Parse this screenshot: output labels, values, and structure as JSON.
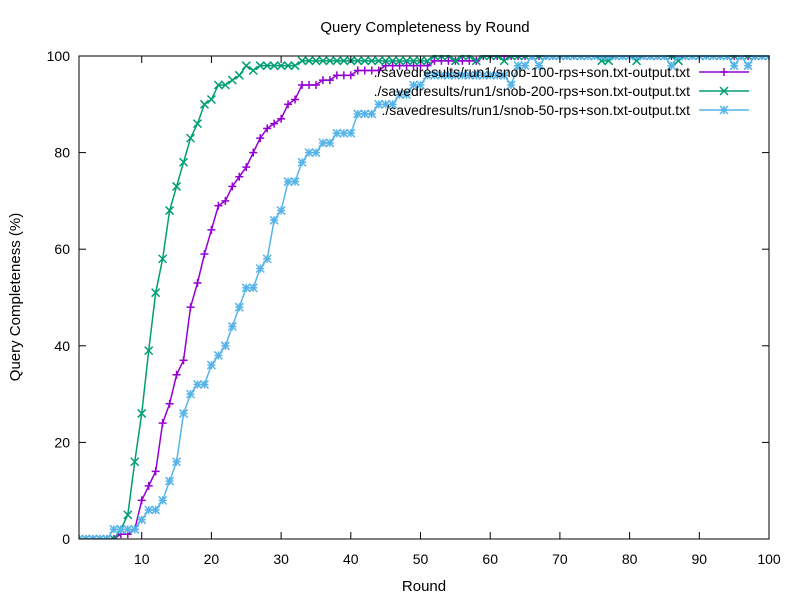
{
  "chart_data": {
    "type": "line",
    "title": "Query Completeness by Round",
    "xlabel": "Round",
    "ylabel": "Query Completeness (%)",
    "xlim": [
      1,
      100
    ],
    "ylim": [
      0,
      100
    ],
    "xticks": [
      10,
      20,
      30,
      40,
      50,
      60,
      70,
      80,
      90,
      100
    ],
    "yticks": [
      0,
      20,
      40,
      60,
      80,
      100
    ],
    "grid": false,
    "legend_position": "top-right",
    "series": [
      {
        "name": "./savedresults/run1/snob-100-rps+son.txt-output.txt",
        "color": "#9400d3",
        "marker": "plus",
        "x": [
          1,
          2,
          3,
          4,
          5,
          6,
          7,
          8,
          9,
          10,
          11,
          12,
          13,
          14,
          15,
          16,
          17,
          18,
          19,
          20,
          21,
          22,
          23,
          24,
          25,
          26,
          27,
          28,
          29,
          30,
          31,
          32,
          33,
          34,
          35,
          36,
          37,
          38,
          39,
          40,
          41,
          42,
          43,
          44,
          45,
          46,
          47,
          48,
          49,
          50,
          51,
          52,
          53,
          54,
          55,
          56,
          57,
          58,
          59,
          60,
          61,
          62,
          63,
          64,
          65,
          66,
          67,
          68,
          69,
          70,
          71,
          72,
          73,
          74,
          75,
          76,
          77,
          78,
          79,
          80,
          81,
          82,
          83,
          84,
          85,
          86,
          87,
          88,
          89,
          90,
          91,
          92,
          93,
          94,
          95,
          96,
          97,
          98,
          99,
          100
        ],
        "y": [
          0,
          0,
          0,
          0,
          0,
          0,
          1,
          1,
          2,
          8,
          11,
          14,
          24,
          28,
          34,
          37,
          48,
          53,
          59,
          64,
          69,
          70,
          73,
          75,
          77,
          80,
          83,
          85,
          86,
          87,
          90,
          91,
          94,
          94,
          94,
          95,
          95,
          96,
          96,
          96,
          97,
          97,
          97,
          97,
          98,
          98,
          98,
          98,
          98,
          98,
          98,
          99,
          99,
          99,
          99,
          99,
          99,
          99,
          100,
          100,
          100,
          100,
          100,
          100,
          100,
          100,
          100,
          100,
          100,
          100,
          100,
          100,
          100,
          100,
          100,
          100,
          100,
          100,
          100,
          100,
          100,
          100,
          100,
          100,
          100,
          100,
          100,
          100,
          100,
          100,
          100,
          100,
          100,
          100,
          100,
          100,
          100,
          100,
          100,
          100
        ]
      },
      {
        "name": "./savedresults/run1/snob-200-rps+son.txt-output.txt",
        "color": "#009e73",
        "marker": "cross",
        "x": [
          1,
          2,
          3,
          4,
          5,
          6,
          7,
          8,
          9,
          10,
          11,
          12,
          13,
          14,
          15,
          16,
          17,
          18,
          19,
          20,
          21,
          22,
          23,
          24,
          25,
          26,
          27,
          28,
          29,
          30,
          31,
          32,
          33,
          34,
          35,
          36,
          37,
          38,
          39,
          40,
          41,
          42,
          43,
          44,
          45,
          46,
          47,
          48,
          49,
          50,
          51,
          52,
          53,
          54,
          55,
          56,
          57,
          58,
          59,
          60,
          61,
          62,
          63,
          64,
          65,
          66,
          67,
          68,
          69,
          70,
          71,
          72,
          73,
          74,
          75,
          76,
          77,
          78,
          79,
          80,
          81,
          82,
          83,
          84,
          85,
          86,
          87,
          88,
          89,
          90,
          91,
          92,
          93,
          94,
          95,
          96,
          97,
          98,
          99,
          100
        ],
        "y": [
          0,
          0,
          0,
          0,
          0,
          0,
          2,
          5,
          16,
          26,
          39,
          51,
          58,
          68,
          73,
          78,
          83,
          86,
          90,
          91,
          94,
          94,
          95,
          96,
          98,
          97,
          98,
          98,
          98,
          98,
          98,
          98,
          99,
          99,
          99,
          99,
          99,
          99,
          99,
          99,
          99,
          99,
          99,
          99,
          99,
          99,
          99,
          99,
          99,
          99,
          99,
          100,
          100,
          100,
          99,
          100,
          100,
          99,
          100,
          100,
          100,
          99,
          100,
          100,
          100,
          100,
          100,
          100,
          100,
          100,
          100,
          100,
          100,
          100,
          100,
          99,
          99,
          100,
          100,
          100,
          99,
          100,
          100,
          100,
          100,
          100,
          99,
          100,
          100,
          100,
          100,
          100,
          100,
          100,
          100,
          100,
          100,
          100,
          100,
          100
        ]
      },
      {
        "name": "./savedresults/run1/snob-50-rps+son.txt-output.txt",
        "color": "#56b4e9",
        "marker": "star",
        "x": [
          1,
          2,
          3,
          4,
          5,
          6,
          7,
          8,
          9,
          10,
          11,
          12,
          13,
          14,
          15,
          16,
          17,
          18,
          19,
          20,
          21,
          22,
          23,
          24,
          25,
          26,
          27,
          28,
          29,
          30,
          31,
          32,
          33,
          34,
          35,
          36,
          37,
          38,
          39,
          40,
          41,
          42,
          43,
          44,
          45,
          46,
          47,
          48,
          49,
          50,
          51,
          52,
          53,
          54,
          55,
          56,
          57,
          58,
          59,
          60,
          61,
          62,
          63,
          64,
          65,
          66,
          67,
          68,
          69,
          70,
          71,
          72,
          73,
          74,
          75,
          76,
          77,
          78,
          79,
          80,
          81,
          82,
          83,
          84,
          85,
          86,
          87,
          88,
          89,
          90,
          91,
          92,
          93,
          94,
          95,
          96,
          97,
          98,
          99,
          100
        ],
        "y": [
          0,
          0,
          0,
          0,
          0,
          2,
          2,
          2,
          2,
          4,
          6,
          6,
          8,
          12,
          16,
          26,
          30,
          32,
          32,
          36,
          38,
          40,
          44,
          48,
          52,
          52,
          56,
          58,
          66,
          68,
          74,
          74,
          78,
          80,
          80,
          82,
          82,
          84,
          84,
          84,
          88,
          88,
          88,
          90,
          90,
          90,
          92,
          92,
          94,
          94,
          96,
          96,
          96,
          96,
          96,
          96,
          96,
          96,
          96,
          96,
          96,
          96,
          94,
          98,
          98,
          100,
          98,
          100,
          100,
          100,
          100,
          100,
          100,
          100,
          100,
          100,
          100,
          100,
          100,
          100,
          100,
          100,
          100,
          100,
          100,
          98,
          100,
          100,
          100,
          100,
          100,
          100,
          100,
          100,
          98,
          100,
          98,
          100,
          100,
          100
        ]
      }
    ]
  }
}
